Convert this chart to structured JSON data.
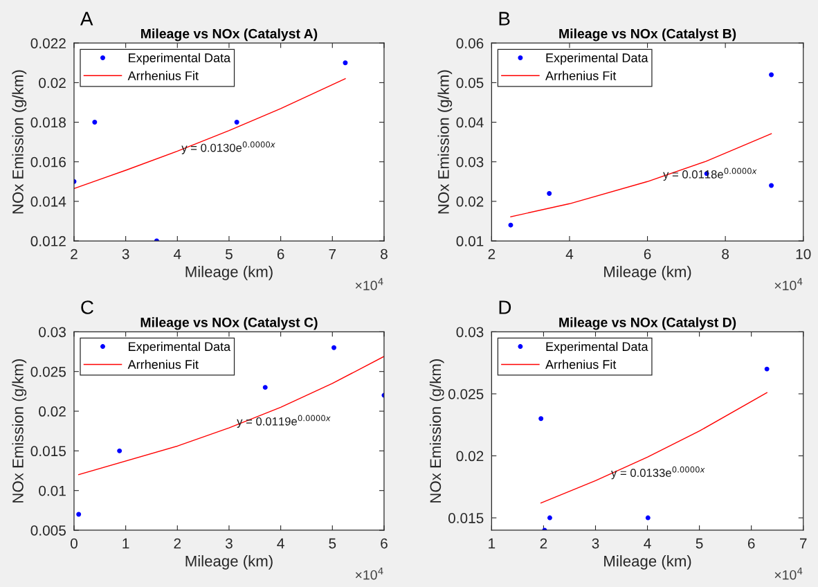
{
  "chart_data": [
    {
      "type": "scatter",
      "title": "Mileage vs NOx (Catalyst A)",
      "xlabel": "Mileage (km)",
      "ylabel": "NOx Emission (g/km)",
      "legend": "top left",
      "grid": false,
      "xlim": [
        2,
        8
      ],
      "xticks": [
        2,
        3,
        4,
        5,
        6,
        7,
        8
      ],
      "ylim": [
        0.012,
        0.022
      ],
      "yticks": [
        0.012,
        0.014,
        0.016,
        0.018,
        0.02,
        0.022
      ],
      "series": [
        {
          "name": "Experimental Data",
          "color": "#0000ff",
          "marker": "circle",
          "x": [
            2.0,
            2.4,
            3.6,
            5.15,
            7.25
          ],
          "values": [
            0.015,
            0.018,
            0.012,
            0.018,
            0.021
          ]
        },
        {
          "name": "Arrhenius Fit",
          "type": "line",
          "color": "#ff0000",
          "marker": "none",
          "line_style": "solid",
          "x": [
            2.0,
            3.0,
            4.0,
            5.0,
            6.0,
            7.25
          ],
          "values": [
            0.01465,
            0.01557,
            0.01654,
            0.01758,
            0.01869,
            0.0202
          ]
        }
      ],
      "annotations": [
        "A",
        "×10$^{4}$",
        {
          "text": "y = 0.0130e$^{0.0000x}$",
          "x": 4.08,
          "y": 0.0165
        }
      ]
    },
    {
      "type": "scatter",
      "title": "Mileage vs NOx (Catalyst B)",
      "xlabel": "Mileage (km)",
      "ylabel": "NOx Emission (g/km)",
      "legend": "top left",
      "grid": false,
      "xlim": [
        2,
        10
      ],
      "xticks": [
        2,
        4,
        6,
        8,
        10
      ],
      "ylim": [
        0.01,
        0.06
      ],
      "yticks": [
        0.01,
        0.02,
        0.03,
        0.04,
        0.05,
        0.06
      ],
      "series": [
        {
          "name": "Experimental Data",
          "color": "#0000ff",
          "marker": "circle",
          "x": [
            2.49,
            3.48,
            7.52,
            9.18,
            9.18
          ],
          "values": [
            0.014,
            0.022,
            0.027,
            0.052,
            0.024
          ]
        },
        {
          "name": "Arrhenius Fit",
          "type": "line",
          "color": "#ff0000",
          "marker": "none",
          "line_style": "solid",
          "x": [
            2.49,
            4.0,
            6.0,
            7.5,
            9.18
          ],
          "values": [
            0.0161,
            0.0194,
            0.025,
            0.0301,
            0.0371
          ]
        }
      ],
      "annotations": [
        "B",
        "×10$^{4}$",
        {
          "text": "y = 0.0118e$^{0.0000x}$",
          "x": 6.4,
          "y": 0.0258
        }
      ]
    },
    {
      "type": "scatter",
      "title": "Mileage vs NOx (Catalyst C)",
      "xlabel": "Mileage (km)",
      "ylabel": "NOx Emission (g/km)",
      "legend": "top left",
      "grid": false,
      "xlim": [
        0,
        6
      ],
      "xticks": [
        0,
        1,
        2,
        3,
        4,
        5,
        6
      ],
      "ylim": [
        0.005,
        0.03
      ],
      "yticks": [
        0.005,
        0.01,
        0.015,
        0.02,
        0.025,
        0.03
      ],
      "series": [
        {
          "name": "Experimental Data",
          "color": "#0000ff",
          "marker": "circle",
          "x": [
            0.09,
            0.88,
            3.7,
            5.03,
            6.0
          ],
          "values": [
            0.007,
            0.015,
            0.023,
            0.028,
            0.022
          ]
        },
        {
          "name": "Arrhenius Fit",
          "type": "line",
          "color": "#ff0000",
          "marker": "none",
          "line_style": "solid",
          "x": [
            0.09,
            2.0,
            3.0,
            4.0,
            5.0,
            6.0
          ],
          "values": [
            0.012,
            0.0156,
            0.0179,
            0.0205,
            0.0235,
            0.0269
          ]
        }
      ],
      "annotations": [
        "C",
        "×10$^{4}$",
        {
          "text": "y = 0.0119e$^{0.0000x}$",
          "x": 3.15,
          "y": 0.0182
        }
      ]
    },
    {
      "type": "scatter",
      "title": "Mileage vs NOx (Catalyst D)",
      "xlabel": "Mileage (km)",
      "ylabel": "NOx Emission (g/km)",
      "legend": "top left",
      "grid": false,
      "xlim": [
        1,
        7
      ],
      "xticks": [
        1,
        2,
        3,
        4,
        5,
        6,
        7
      ],
      "ylim": [
        0.014,
        0.03
      ],
      "yticks": [
        0.015,
        0.02,
        0.025,
        0.03
      ],
      "series": [
        {
          "name": "Experimental Data",
          "color": "#0000ff",
          "marker": "circle",
          "x": [
            1.95,
            2.02,
            2.12,
            4.01,
            6.3
          ],
          "values": [
            0.023,
            0.014,
            0.015,
            0.015,
            0.027
          ]
        },
        {
          "name": "Arrhenius Fit",
          "type": "line",
          "color": "#ff0000",
          "marker": "none",
          "line_style": "solid",
          "x": [
            1.95,
            3.0,
            4.0,
            5.0,
            6.3
          ],
          "values": [
            0.0162,
            0.018,
            0.0199,
            0.022,
            0.0251
          ]
        }
      ],
      "annotations": [
        "D",
        "×10$^{4}$",
        {
          "text": "y = 0.0133e$^{0.0000x}$",
          "x": 3.3,
          "y": 0.0183
        }
      ]
    }
  ]
}
